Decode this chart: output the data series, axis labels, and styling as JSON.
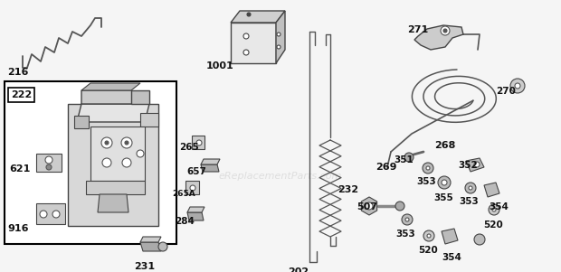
{
  "bg_color": "#f5f5f5",
  "watermark": "eReplacementParts.com",
  "text_color": "#111111",
  "line_color": "#444444",
  "part_color": "#999999",
  "box_line_color": "#000000",
  "figsize": [
    6.2,
    3.01
  ],
  "dpi": 100
}
